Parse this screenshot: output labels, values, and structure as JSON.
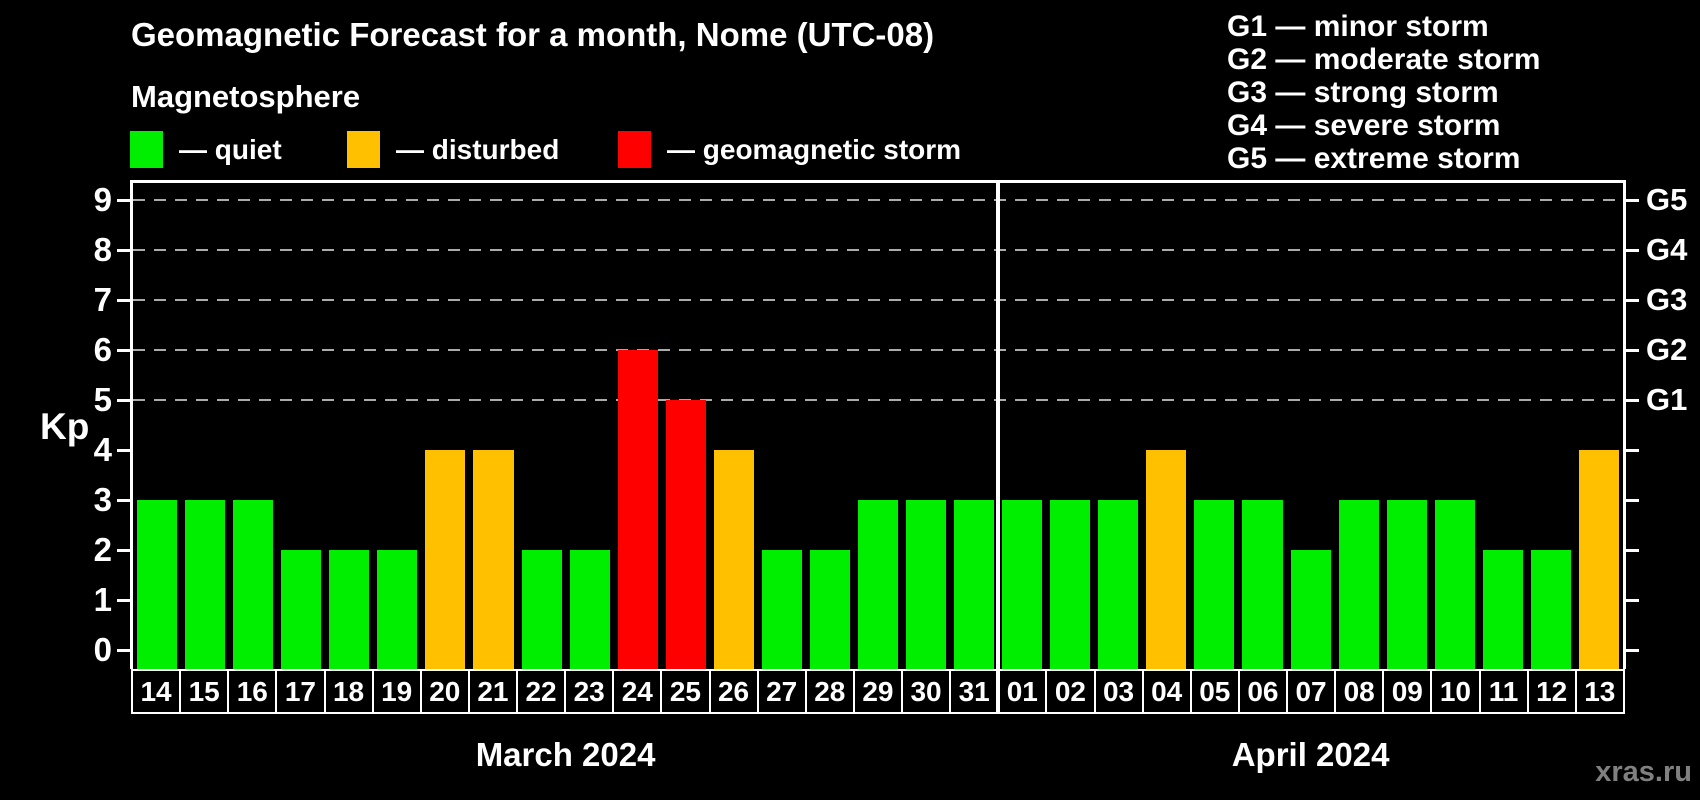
{
  "header": {
    "title": "Geomagnetic Forecast for a month, Nome (UTC-08)",
    "subtitle": "Magnetosphere"
  },
  "legend": {
    "items": [
      {
        "key": "quiet",
        "label": "— quiet",
        "color": "#00ee00"
      },
      {
        "key": "disturbed",
        "label": "— disturbed",
        "color": "#ffc000"
      },
      {
        "key": "storm",
        "label": "— geomagnetic storm",
        "color": "#ff0000"
      }
    ]
  },
  "storm_scale": {
    "lines": [
      "G1 — minor storm",
      "G2 — moderate storm",
      "G3 — strong storm",
      "G4 — severe storm",
      "G5 — extreme storm"
    ]
  },
  "watermark": "xras.ru",
  "chart_data": {
    "type": "bar",
    "title": "Geomagnetic Forecast for a month, Nome (UTC-08)",
    "ylabel": "Kp",
    "ylim": [
      0,
      9
    ],
    "yticks": [
      0,
      1,
      2,
      3,
      4,
      5,
      6,
      7,
      8,
      9
    ],
    "gridlines": [
      5,
      6,
      7,
      8,
      9
    ],
    "grid_style": "dashed",
    "legend_position": "top-left",
    "right_axis_labels": [
      {
        "value": 5,
        "text": "G1"
      },
      {
        "value": 6,
        "text": "G2"
      },
      {
        "value": 7,
        "text": "G3"
      },
      {
        "value": 8,
        "text": "G4"
      },
      {
        "value": 9,
        "text": "G5"
      }
    ],
    "months": [
      {
        "label": "March 2024",
        "days": 18
      },
      {
        "label": "April 2024",
        "days": 13
      }
    ],
    "status_colors": {
      "quiet": "#00ee00",
      "disturbed": "#ffc000",
      "storm": "#ff0000"
    },
    "points": [
      {
        "date": "14",
        "month": "march",
        "kp": 3,
        "status": "quiet"
      },
      {
        "date": "15",
        "month": "march",
        "kp": 3,
        "status": "quiet"
      },
      {
        "date": "16",
        "month": "march",
        "kp": 3,
        "status": "quiet"
      },
      {
        "date": "17",
        "month": "march",
        "kp": 2,
        "status": "quiet"
      },
      {
        "date": "18",
        "month": "march",
        "kp": 2,
        "status": "quiet"
      },
      {
        "date": "19",
        "month": "march",
        "kp": 2,
        "status": "quiet"
      },
      {
        "date": "20",
        "month": "march",
        "kp": 4,
        "status": "disturbed"
      },
      {
        "date": "21",
        "month": "march",
        "kp": 4,
        "status": "disturbed"
      },
      {
        "date": "22",
        "month": "march",
        "kp": 2,
        "status": "quiet"
      },
      {
        "date": "23",
        "month": "march",
        "kp": 2,
        "status": "quiet"
      },
      {
        "date": "24",
        "month": "march",
        "kp": 6,
        "status": "storm"
      },
      {
        "date": "25",
        "month": "march",
        "kp": 5,
        "status": "storm"
      },
      {
        "date": "26",
        "month": "march",
        "kp": 4,
        "status": "disturbed"
      },
      {
        "date": "27",
        "month": "march",
        "kp": 2,
        "status": "quiet"
      },
      {
        "date": "28",
        "month": "march",
        "kp": 2,
        "status": "quiet"
      },
      {
        "date": "29",
        "month": "march",
        "kp": 3,
        "status": "quiet"
      },
      {
        "date": "30",
        "month": "march",
        "kp": 3,
        "status": "quiet"
      },
      {
        "date": "31",
        "month": "march",
        "kp": 3,
        "status": "quiet"
      },
      {
        "date": "01",
        "month": "april",
        "kp": 3,
        "status": "quiet"
      },
      {
        "date": "02",
        "month": "april",
        "kp": 3,
        "status": "quiet"
      },
      {
        "date": "03",
        "month": "april",
        "kp": 3,
        "status": "quiet"
      },
      {
        "date": "04",
        "month": "april",
        "kp": 4,
        "status": "disturbed"
      },
      {
        "date": "05",
        "month": "april",
        "kp": 3,
        "status": "quiet"
      },
      {
        "date": "06",
        "month": "april",
        "kp": 3,
        "status": "quiet"
      },
      {
        "date": "07",
        "month": "april",
        "kp": 2,
        "status": "quiet"
      },
      {
        "date": "08",
        "month": "april",
        "kp": 3,
        "status": "quiet"
      },
      {
        "date": "09",
        "month": "april",
        "kp": 3,
        "status": "quiet"
      },
      {
        "date": "10",
        "month": "april",
        "kp": 3,
        "status": "quiet"
      },
      {
        "date": "11",
        "month": "april",
        "kp": 2,
        "status": "quiet"
      },
      {
        "date": "12",
        "month": "april",
        "kp": 2,
        "status": "quiet"
      },
      {
        "date": "13",
        "month": "april",
        "kp": 4,
        "status": "disturbed"
      }
    ]
  }
}
